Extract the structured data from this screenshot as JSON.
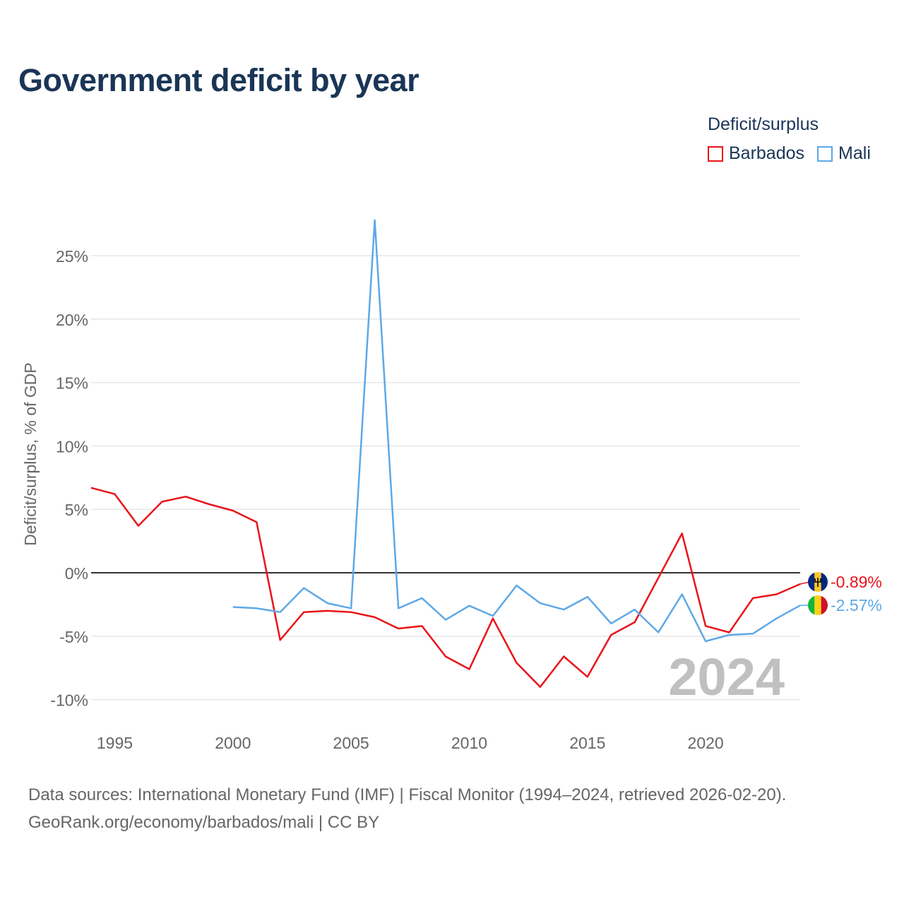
{
  "title": "Government deficit by year",
  "legend": {
    "title": "Deficit/surplus",
    "items": [
      {
        "label": "Barbados",
        "color": "#e8141b"
      },
      {
        "label": "Mali",
        "color": "#5ea8e6"
      }
    ]
  },
  "source": {
    "line1": "Data sources: International Monetary Fund (IMF) | Fiscal Monitor (1994–2024, retrieved 2026-02-20).",
    "line2": "GeoRank.org/economy/barbados/mali | CC BY"
  },
  "chart_data": {
    "type": "line",
    "title": "Government deficit by year",
    "ylabel": "Deficit/surplus, % of GDP",
    "xlabel": "",
    "xlim": [
      1994,
      2024
    ],
    "ylim": [
      -11,
      28
    ],
    "x_ticks": [
      1995,
      2000,
      2005,
      2010,
      2015,
      2020
    ],
    "y_ticks": [
      25,
      20,
      15,
      10,
      5,
      0,
      -5,
      -10
    ],
    "y_tick_labels": [
      "25%",
      "20%",
      "15%",
      "10%",
      "5%",
      "0%",
      "-5%",
      "-10%"
    ],
    "year_watermark": "2024",
    "legend_position": "top-right",
    "series": [
      {
        "name": "Barbados",
        "color": "#e8141b",
        "end_label": "-0.89%",
        "flag_icon": "barbados-flag-icon",
        "x": [
          1994,
          1995,
          1996,
          1997,
          1998,
          1999,
          2000,
          2001,
          2002,
          2003,
          2004,
          2005,
          2006,
          2007,
          2008,
          2009,
          2010,
          2011,
          2012,
          2013,
          2014,
          2015,
          2016,
          2017,
          2018,
          2019,
          2020,
          2021,
          2022,
          2023,
          2024
        ],
        "values": [
          6.7,
          6.2,
          3.7,
          5.6,
          6.0,
          5.4,
          4.9,
          4.0,
          -5.3,
          -3.1,
          -3.0,
          -3.1,
          -3.5,
          -4.4,
          -4.2,
          -6.6,
          -7.6,
          -3.6,
          -7.1,
          -9.0,
          -6.6,
          -8.2,
          -4.9,
          -3.9,
          -0.4,
          3.1,
          -4.2,
          -4.7,
          -2.0,
          -1.7,
          -0.89
        ]
      },
      {
        "name": "Mali",
        "color": "#5ea8e6",
        "end_label": "-2.57%",
        "flag_icon": "mali-flag-icon",
        "x": [
          2000,
          2001,
          2002,
          2003,
          2004,
          2005,
          2006,
          2007,
          2008,
          2009,
          2010,
          2011,
          2012,
          2013,
          2014,
          2015,
          2016,
          2017,
          2018,
          2019,
          2020,
          2021,
          2022,
          2023,
          2024
        ],
        "values": [
          -2.7,
          -2.8,
          -3.1,
          -1.2,
          -2.4,
          -2.8,
          27.8,
          -2.8,
          -2.0,
          -3.7,
          -2.6,
          -3.4,
          -1.0,
          -2.4,
          -2.9,
          -1.9,
          -4.0,
          -2.9,
          -4.7,
          -1.7,
          -5.4,
          -4.9,
          -4.8,
          -3.6,
          -2.57
        ]
      }
    ]
  }
}
